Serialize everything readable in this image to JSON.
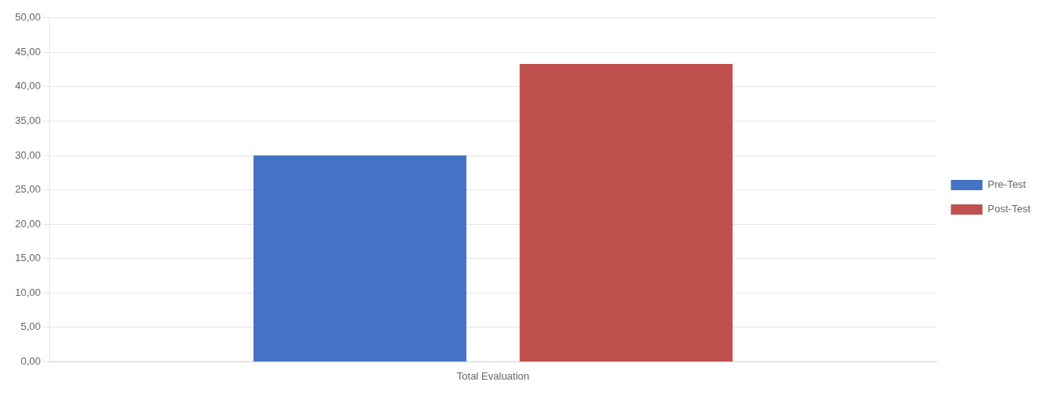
{
  "chart_data": {
    "type": "bar",
    "categories": [
      "Total Evaluation"
    ],
    "series": [
      {
        "name": "Pre-Test",
        "color": "#4472C4",
        "values": [
          30.0
        ]
      },
      {
        "name": "Post-Test",
        "color": "#C0504D",
        "values": [
          43.33
        ]
      }
    ],
    "ylim": [
      0,
      50
    ],
    "yticks": [
      {
        "value": 0,
        "label": "0,00"
      },
      {
        "value": 5,
        "label": "5,00"
      },
      {
        "value": 10,
        "label": "10,00"
      },
      {
        "value": 15,
        "label": "15,00"
      },
      {
        "value": 20,
        "label": "20,00"
      },
      {
        "value": 25,
        "label": "25,00"
      },
      {
        "value": 30,
        "label": "30,00"
      },
      {
        "value": 35,
        "label": "35,00"
      },
      {
        "value": 40,
        "label": "40,00"
      },
      {
        "value": 45,
        "label": "45,00"
      },
      {
        "value": 50,
        "label": "50,00"
      }
    ],
    "grid": true,
    "legend": "right"
  }
}
